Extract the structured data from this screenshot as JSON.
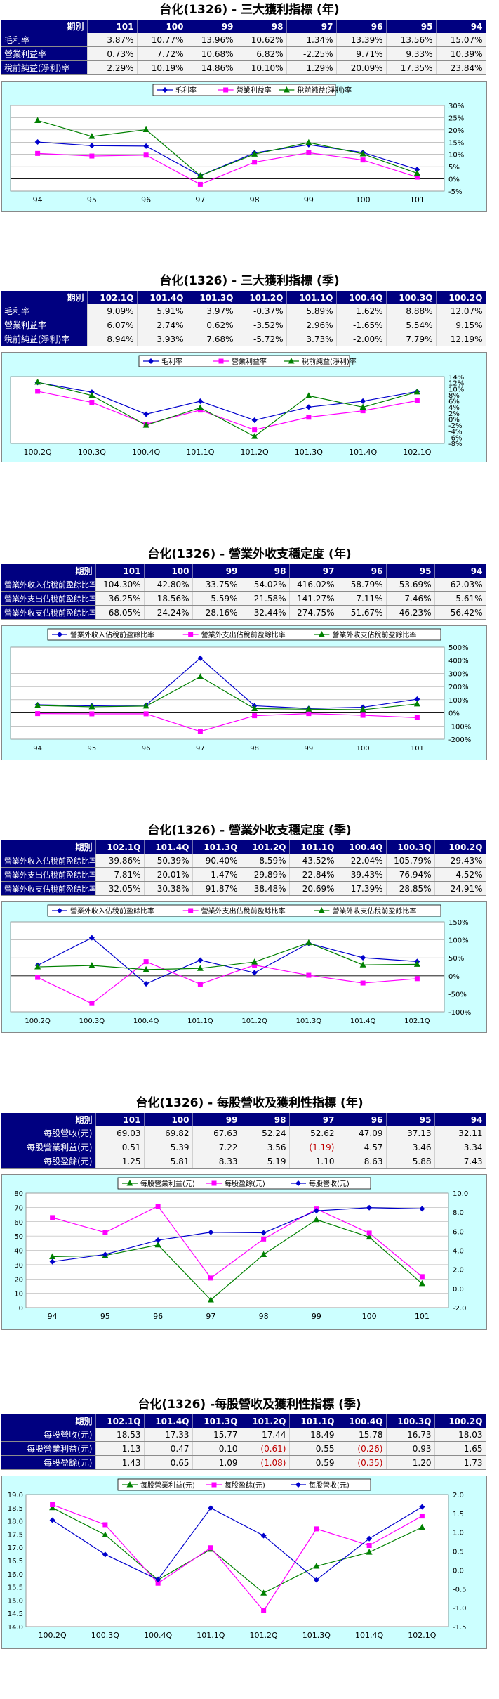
{
  "sections": [
    {
      "title": "台化(1326) - 三大獲利指標 (年)",
      "label_header": "期別",
      "columns": [
        "101",
        "100",
        "99",
        "98",
        "97",
        "96",
        "95",
        "94"
      ],
      "rows": [
        {
          "label": "毛利率",
          "cells": [
            "3.87%",
            "10.77%",
            "13.96%",
            "10.62%",
            "1.34%",
            "13.39%",
            "13.56%",
            "15.07%"
          ]
        },
        {
          "label": "營業利益率",
          "cells": [
            "0.73%",
            "7.72%",
            "10.68%",
            "6.82%",
            "-2.25%",
            "9.71%",
            "9.33%",
            "10.39%"
          ]
        },
        {
          "label": "稅前純益(淨利)率",
          "cells": [
            "2.29%",
            "10.19%",
            "14.86%",
            "10.10%",
            "1.29%",
            "20.09%",
            "17.35%",
            "23.84%"
          ]
        }
      ]
    },
    {
      "title": "台化(1326) - 三大獲利指標 (季)",
      "label_header": "期別",
      "columns": [
        "102.1Q",
        "101.4Q",
        "101.3Q",
        "101.2Q",
        "101.1Q",
        "100.4Q",
        "100.3Q",
        "100.2Q"
      ],
      "rows": [
        {
          "label": "毛利率",
          "cells": [
            "9.09%",
            "5.91%",
            "3.97%",
            "-0.37%",
            "5.89%",
            "1.62%",
            "8.88%",
            "12.07%"
          ]
        },
        {
          "label": "營業利益率",
          "cells": [
            "6.07%",
            "2.74%",
            "0.62%",
            "-3.52%",
            "2.96%",
            "-1.65%",
            "5.54%",
            "9.15%"
          ]
        },
        {
          "label": "稅前純益(淨利)率",
          "cells": [
            "8.94%",
            "3.93%",
            "7.68%",
            "-5.72%",
            "3.73%",
            "-2.00%",
            "7.79%",
            "12.19%"
          ]
        }
      ]
    },
    {
      "title": "台化(1326) - 營業外收支穩定度 (年)",
      "label_header": "期別",
      "columns": [
        "101",
        "100",
        "99",
        "98",
        "97",
        "96",
        "95",
        "94"
      ],
      "rows": [
        {
          "label": "營業外收入佔稅前盈餘比率",
          "cells": [
            "104.30%",
            "42.80%",
            "33.75%",
            "54.02%",
            "416.02%",
            "58.79%",
            "53.69%",
            "62.03%"
          ]
        },
        {
          "label": "營業外支出佔稅前盈餘比率",
          "cells": [
            "-36.25%",
            "-18.56%",
            "-5.59%",
            "-21.58%",
            "-141.27%",
            "-7.11%",
            "-7.46%",
            "-5.61%"
          ]
        },
        {
          "label": "營業外收支佔稅前盈餘比率",
          "cells": [
            "68.05%",
            "24.24%",
            "28.16%",
            "32.44%",
            "274.75%",
            "51.67%",
            "46.23%",
            "56.42%"
          ]
        }
      ]
    },
    {
      "title": "台化(1326) - 營業外收支穩定度 (季)",
      "label_header": "期別",
      "columns": [
        "102.1Q",
        "101.4Q",
        "101.3Q",
        "101.2Q",
        "101.1Q",
        "100.4Q",
        "100.3Q",
        "100.2Q"
      ],
      "rows": [
        {
          "label": "營業外收入佔稅前盈餘比率",
          "cells": [
            "39.86%",
            "50.39%",
            "90.40%",
            "8.59%",
            "43.52%",
            "-22.04%",
            "105.79%",
            "29.43%"
          ]
        },
        {
          "label": "營業外支出佔稅前盈餘比率",
          "cells": [
            "-7.81%",
            "-20.01%",
            "1.47%",
            "29.89%",
            "-22.84%",
            "39.43%",
            "-76.94%",
            "-4.52%"
          ]
        },
        {
          "label": "營業外收支佔稅前盈餘比率",
          "cells": [
            "32.05%",
            "30.38%",
            "91.87%",
            "38.48%",
            "20.69%",
            "17.39%",
            "28.85%",
            "24.91%"
          ]
        }
      ]
    },
    {
      "title": "台化(1326) - 每股營收及獲利性指標 (年)",
      "label_header": "期別",
      "columns": [
        "101",
        "100",
        "99",
        "98",
        "97",
        "96",
        "95",
        "94"
      ],
      "rows": [
        {
          "label": "每股營收(元)",
          "cells": [
            "69.03",
            "69.82",
            "67.63",
            "52.24",
            "52.62",
            "47.09",
            "37.13",
            "32.11"
          ]
        },
        {
          "label": "每股營業利益(元)",
          "cells": [
            "0.51",
            "5.39",
            "7.22",
            "3.56",
            "(1.19)",
            "4.57",
            "3.46",
            "3.34"
          ]
        },
        {
          "label": "每股盈餘(元)",
          "cells": [
            "1.25",
            "5.81",
            "8.33",
            "5.19",
            "1.10",
            "8.63",
            "5.88",
            "7.43"
          ]
        }
      ]
    },
    {
      "title": "台化(1326) -每股營收及獲利性指標 (季)",
      "label_header": "期別",
      "columns": [
        "102.1Q",
        "101.4Q",
        "101.3Q",
        "101.2Q",
        "101.1Q",
        "100.4Q",
        "100.3Q",
        "100.2Q"
      ],
      "rows": [
        {
          "label": "每股營收(元)",
          "cells": [
            "18.53",
            "17.33",
            "15.77",
            "17.44",
            "18.49",
            "15.78",
            "16.73",
            "18.03"
          ]
        },
        {
          "label": "每股營業利益(元)",
          "cells": [
            "1.13",
            "0.47",
            "0.10",
            "(0.61)",
            "0.55",
            "(0.26)",
            "0.93",
            "1.65"
          ]
        },
        {
          "label": "每股盈餘(元)",
          "cells": [
            "1.43",
            "0.65",
            "1.09",
            "(1.08)",
            "0.59",
            "(0.35)",
            "1.20",
            "1.73"
          ]
        }
      ]
    }
  ],
  "colors": {
    "blue": "#0000cc",
    "magenta": "#ff00ff",
    "green": "#008000",
    "table_header": "#000080",
    "chart_bg": "#ccffff"
  },
  "chart_data": [
    {
      "type": "line",
      "categories": [
        "94",
        "95",
        "96",
        "97",
        "98",
        "99",
        "100",
        "101"
      ],
      "ylim": [
        -5,
        30
      ],
      "yticks": [
        -5,
        0,
        5,
        10,
        15,
        20,
        25,
        30
      ],
      "ytick_labels": [
        "-5%",
        "0%",
        "5%",
        "10%",
        "15%",
        "20%",
        "25%",
        "30%"
      ],
      "axis_side": "right",
      "grid": true,
      "legend_placement": "top",
      "series": [
        {
          "name": "毛利率",
          "marker": "diamond",
          "color": "#0000cc",
          "values": [
            15.07,
            13.56,
            13.39,
            1.34,
            10.62,
            13.96,
            10.77,
            3.87
          ]
        },
        {
          "name": "營業利益率",
          "marker": "square",
          "color": "#ff00ff",
          "values": [
            10.39,
            9.33,
            9.71,
            -2.25,
            6.82,
            10.68,
            7.72,
            0.73
          ]
        },
        {
          "name": "稅前純益(淨利)率",
          "marker": "triangle",
          "color": "#008000",
          "values": [
            23.84,
            17.35,
            20.09,
            1.29,
            10.1,
            14.86,
            10.19,
            2.29
          ]
        }
      ]
    },
    {
      "type": "line",
      "categories": [
        "100.2Q",
        "100.3Q",
        "100.4Q",
        "101.1Q",
        "101.2Q",
        "101.3Q",
        "101.4Q",
        "102.1Q"
      ],
      "ylim": [
        -8,
        14
      ],
      "yticks": [
        -8,
        -6,
        -4,
        -2,
        0,
        2,
        4,
        6,
        8,
        10,
        12,
        14
      ],
      "ytick_labels": [
        "-8%",
        "-6%",
        "-4%",
        "-2%",
        "0%",
        "2%",
        "4%",
        "6%",
        "8%",
        "10%",
        "12%",
        "14%"
      ],
      "axis_side": "right",
      "grid": false,
      "legend_placement": "top",
      "series": [
        {
          "name": "毛利率",
          "marker": "diamond",
          "color": "#0000cc",
          "values": [
            12.07,
            8.88,
            1.62,
            5.89,
            -0.37,
            3.97,
            5.91,
            9.09
          ]
        },
        {
          "name": "營業利益率",
          "marker": "square",
          "color": "#ff00ff",
          "values": [
            9.15,
            5.54,
            -1.65,
            2.96,
            -3.52,
            0.62,
            2.74,
            6.07
          ]
        },
        {
          "name": "稅前純益(淨利)率",
          "marker": "triangle",
          "color": "#008000",
          "values": [
            12.19,
            7.79,
            -2.0,
            3.73,
            -5.72,
            7.68,
            3.93,
            8.94
          ]
        }
      ]
    },
    {
      "type": "line",
      "categories": [
        "94",
        "95",
        "96",
        "97",
        "98",
        "99",
        "100",
        "101"
      ],
      "ylim": [
        -200,
        500
      ],
      "yticks": [
        -200,
        -100,
        0,
        100,
        200,
        300,
        400,
        500
      ],
      "ytick_labels": [
        "-200%",
        "-100%",
        "0%",
        "100%",
        "200%",
        "300%",
        "400%",
        "500%"
      ],
      "axis_side": "right",
      "grid": true,
      "legend_placement": "top",
      "series": [
        {
          "name": "營業外收入佔稅前盈餘比率",
          "marker": "diamond",
          "color": "#0000cc",
          "values": [
            62.03,
            53.69,
            58.79,
            416.02,
            54.02,
            33.75,
            42.8,
            104.3
          ]
        },
        {
          "name": "營業外支出佔稅前盈餘比率",
          "marker": "square",
          "color": "#ff00ff",
          "values": [
            -5.61,
            -7.46,
            -7.11,
            -141.27,
            -21.58,
            -5.59,
            -18.56,
            -36.25
          ]
        },
        {
          "name": "營業外收支佔稅前盈餘比率",
          "marker": "triangle",
          "color": "#008000",
          "values": [
            56.42,
            46.23,
            51.67,
            274.75,
            32.44,
            28.16,
            24.24,
            68.05
          ]
        }
      ]
    },
    {
      "type": "line",
      "categories": [
        "100.2Q",
        "100.3Q",
        "100.4Q",
        "101.1Q",
        "101.2Q",
        "101.3Q",
        "101.4Q",
        "102.1Q"
      ],
      "ylim": [
        -100,
        150
      ],
      "yticks": [
        -100,
        -50,
        0,
        50,
        100,
        150
      ],
      "ytick_labels": [
        "-100%",
        "-50%",
        "0%",
        "50%",
        "100%",
        "150%"
      ],
      "axis_side": "right",
      "grid": true,
      "legend_placement": "top",
      "series": [
        {
          "name": "營業外收入佔稅前盈餘比率",
          "marker": "diamond",
          "color": "#0000cc",
          "values": [
            29.43,
            105.79,
            -22.04,
            43.52,
            8.59,
            90.4,
            50.39,
            39.86
          ]
        },
        {
          "name": "營業外支出佔稅前盈餘比率",
          "marker": "square",
          "color": "#ff00ff",
          "values": [
            -4.52,
            -76.94,
            39.43,
            -22.84,
            29.89,
            1.47,
            -20.01,
            -7.81
          ]
        },
        {
          "name": "營業外收支佔稅前盈餘比率",
          "marker": "triangle",
          "color": "#008000",
          "values": [
            24.91,
            28.85,
            17.39,
            20.69,
            38.48,
            91.87,
            30.38,
            32.05
          ]
        }
      ]
    },
    {
      "type": "line",
      "categories": [
        "94",
        "95",
        "96",
        "97",
        "98",
        "99",
        "100",
        "101"
      ],
      "ylim": [
        0,
        80
      ],
      "yticks": [
        0,
        10,
        20,
        30,
        40,
        50,
        60,
        70,
        80
      ],
      "ytick_labels": [
        "0",
        "10",
        "20",
        "30",
        "40",
        "50",
        "60",
        "70",
        "80"
      ],
      "y2lim": [
        -2,
        10
      ],
      "y2ticks": [
        -2,
        0,
        2,
        4,
        6,
        8,
        10
      ],
      "y2tick_labels": [
        "-2.0",
        "0.0",
        "2.0",
        "4.0",
        "6.0",
        "8.0",
        "10.0"
      ],
      "axis_side": "both",
      "grid": true,
      "legend_placement": "top",
      "series": [
        {
          "name": "每股營業利益(元)",
          "marker": "triangle",
          "color": "#008000",
          "axis": "right",
          "values": [
            3.34,
            3.46,
            4.57,
            -1.19,
            3.56,
            7.22,
            5.39,
            0.51
          ]
        },
        {
          "name": "每股盈餘(元)",
          "marker": "square",
          "color": "#ff00ff",
          "axis": "right",
          "values": [
            7.43,
            5.88,
            8.63,
            1.1,
            5.19,
            8.33,
            5.81,
            1.25
          ]
        },
        {
          "name": "每股營收(元)",
          "marker": "diamond",
          "color": "#0000cc",
          "axis": "left",
          "values": [
            32.11,
            37.13,
            47.09,
            52.62,
            52.24,
            67.63,
            69.82,
            69.03
          ]
        }
      ]
    },
    {
      "type": "line",
      "categories": [
        "100.2Q",
        "100.3Q",
        "100.4Q",
        "101.1Q",
        "101.2Q",
        "101.3Q",
        "101.4Q",
        "102.1Q"
      ],
      "ylim": [
        14,
        19
      ],
      "yticks": [
        14,
        14.5,
        15,
        15.5,
        16,
        16.5,
        17,
        17.5,
        18,
        18.5,
        19
      ],
      "ytick_labels": [
        "14.0",
        "14.5",
        "15.0",
        "15.5",
        "16.0",
        "16.5",
        "17.0",
        "17.5",
        "18.0",
        "18.5",
        "19.0"
      ],
      "y2lim": [
        -1.5,
        2
      ],
      "y2ticks": [
        -1.5,
        -1,
        -0.5,
        0,
        0.5,
        1,
        1.5,
        2
      ],
      "y2tick_labels": [
        "-1.5",
        "-1.0",
        "-0.5",
        "0.0",
        "0.5",
        "1.0",
        "1.5",
        "2.0"
      ],
      "axis_side": "both",
      "grid": false,
      "legend_placement": "top",
      "series": [
        {
          "name": "每股營業利益(元)",
          "marker": "triangle",
          "color": "#008000",
          "axis": "right",
          "values": [
            1.65,
            0.93,
            -0.26,
            0.55,
            -0.61,
            0.1,
            0.47,
            1.13
          ]
        },
        {
          "name": "每股盈餘(元)",
          "marker": "square",
          "color": "#ff00ff",
          "axis": "right",
          "values": [
            1.73,
            1.2,
            -0.35,
            0.59,
            -1.08,
            1.09,
            0.65,
            1.43
          ]
        },
        {
          "name": "每股營收(元)",
          "marker": "diamond",
          "color": "#0000cc",
          "axis": "left",
          "values": [
            18.03,
            16.73,
            15.78,
            18.49,
            17.44,
            15.77,
            17.33,
            18.53
          ]
        }
      ]
    }
  ]
}
